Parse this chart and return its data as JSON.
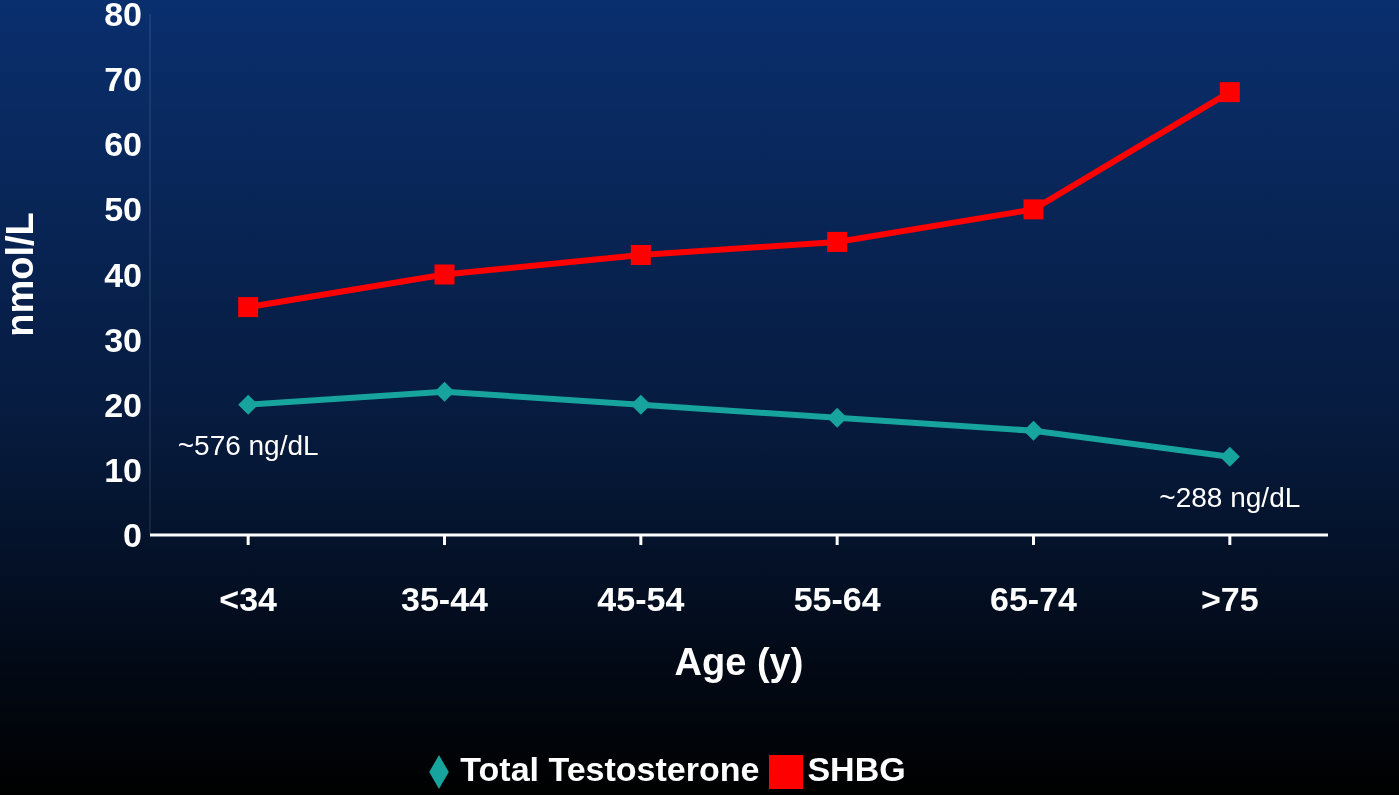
{
  "chart_data": {
    "type": "line",
    "xlabel": "Age (y)",
    "ylabel": "nmol/L",
    "categories": [
      "<34",
      "35-44",
      "45-54",
      "55-64",
      "65-74",
      ">75"
    ],
    "series": [
      {
        "name": "Total Testosterone",
        "color": "#17a39e",
        "marker": "diamond",
        "values": [
          20,
          22,
          20,
          18,
          16,
          12
        ]
      },
      {
        "name": "SHBG",
        "color": "#ff0000",
        "marker": "square",
        "values": [
          35,
          40,
          43,
          45,
          50,
          68
        ]
      }
    ],
    "ylim": [
      0,
      80
    ],
    "yticks": [
      0,
      10,
      20,
      30,
      40,
      50,
      60,
      70,
      80
    ],
    "grid": false,
    "legend": "bottom",
    "line_style": "solid",
    "annotations": [
      {
        "text": "~576 ng/dL",
        "x": "<34",
        "y": 20
      },
      {
        "text": "~288 ng/dL",
        "x": ">75",
        "y": 12
      }
    ]
  }
}
